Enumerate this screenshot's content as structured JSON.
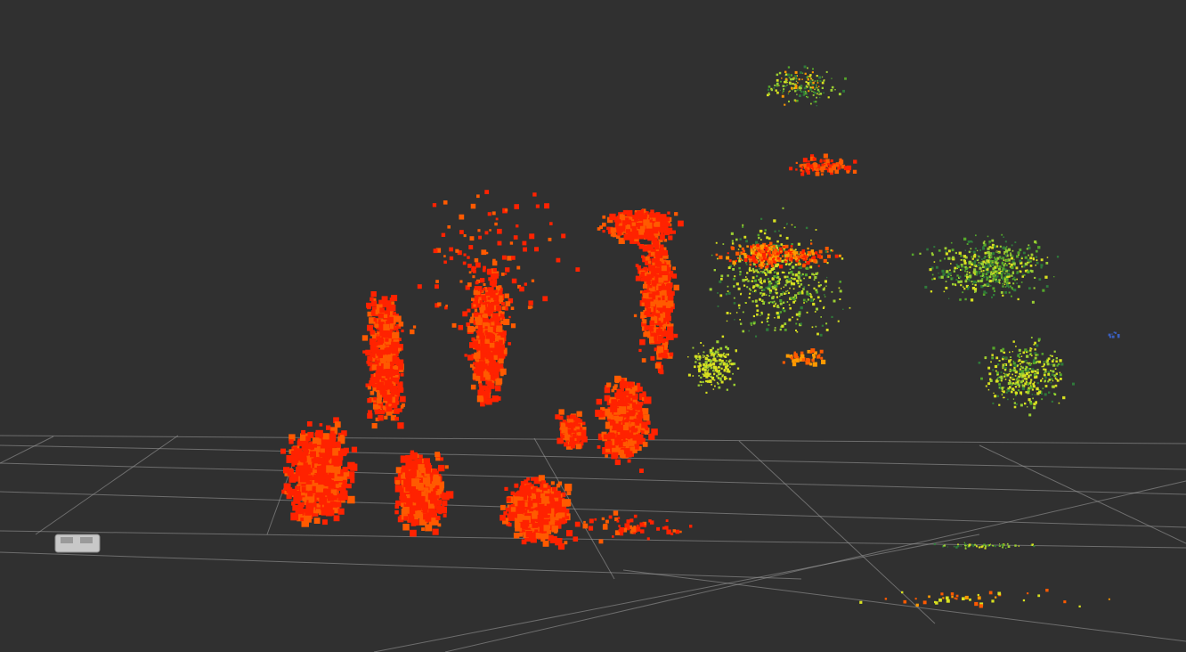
{
  "viewer": {
    "background": "#303030",
    "grid": {
      "visible": true,
      "color": "#a0a0a0"
    },
    "robot_model": {
      "color": "#c8c8c8"
    },
    "point_cloud": {
      "color_transformer": "axis",
      "palette": [
        "#ff2200",
        "#ff5a00",
        "#ff9900",
        "#d8e020",
        "#9acd32",
        "#55a62b",
        "#2f7a3a",
        "#3a5fbf"
      ]
    }
  }
}
